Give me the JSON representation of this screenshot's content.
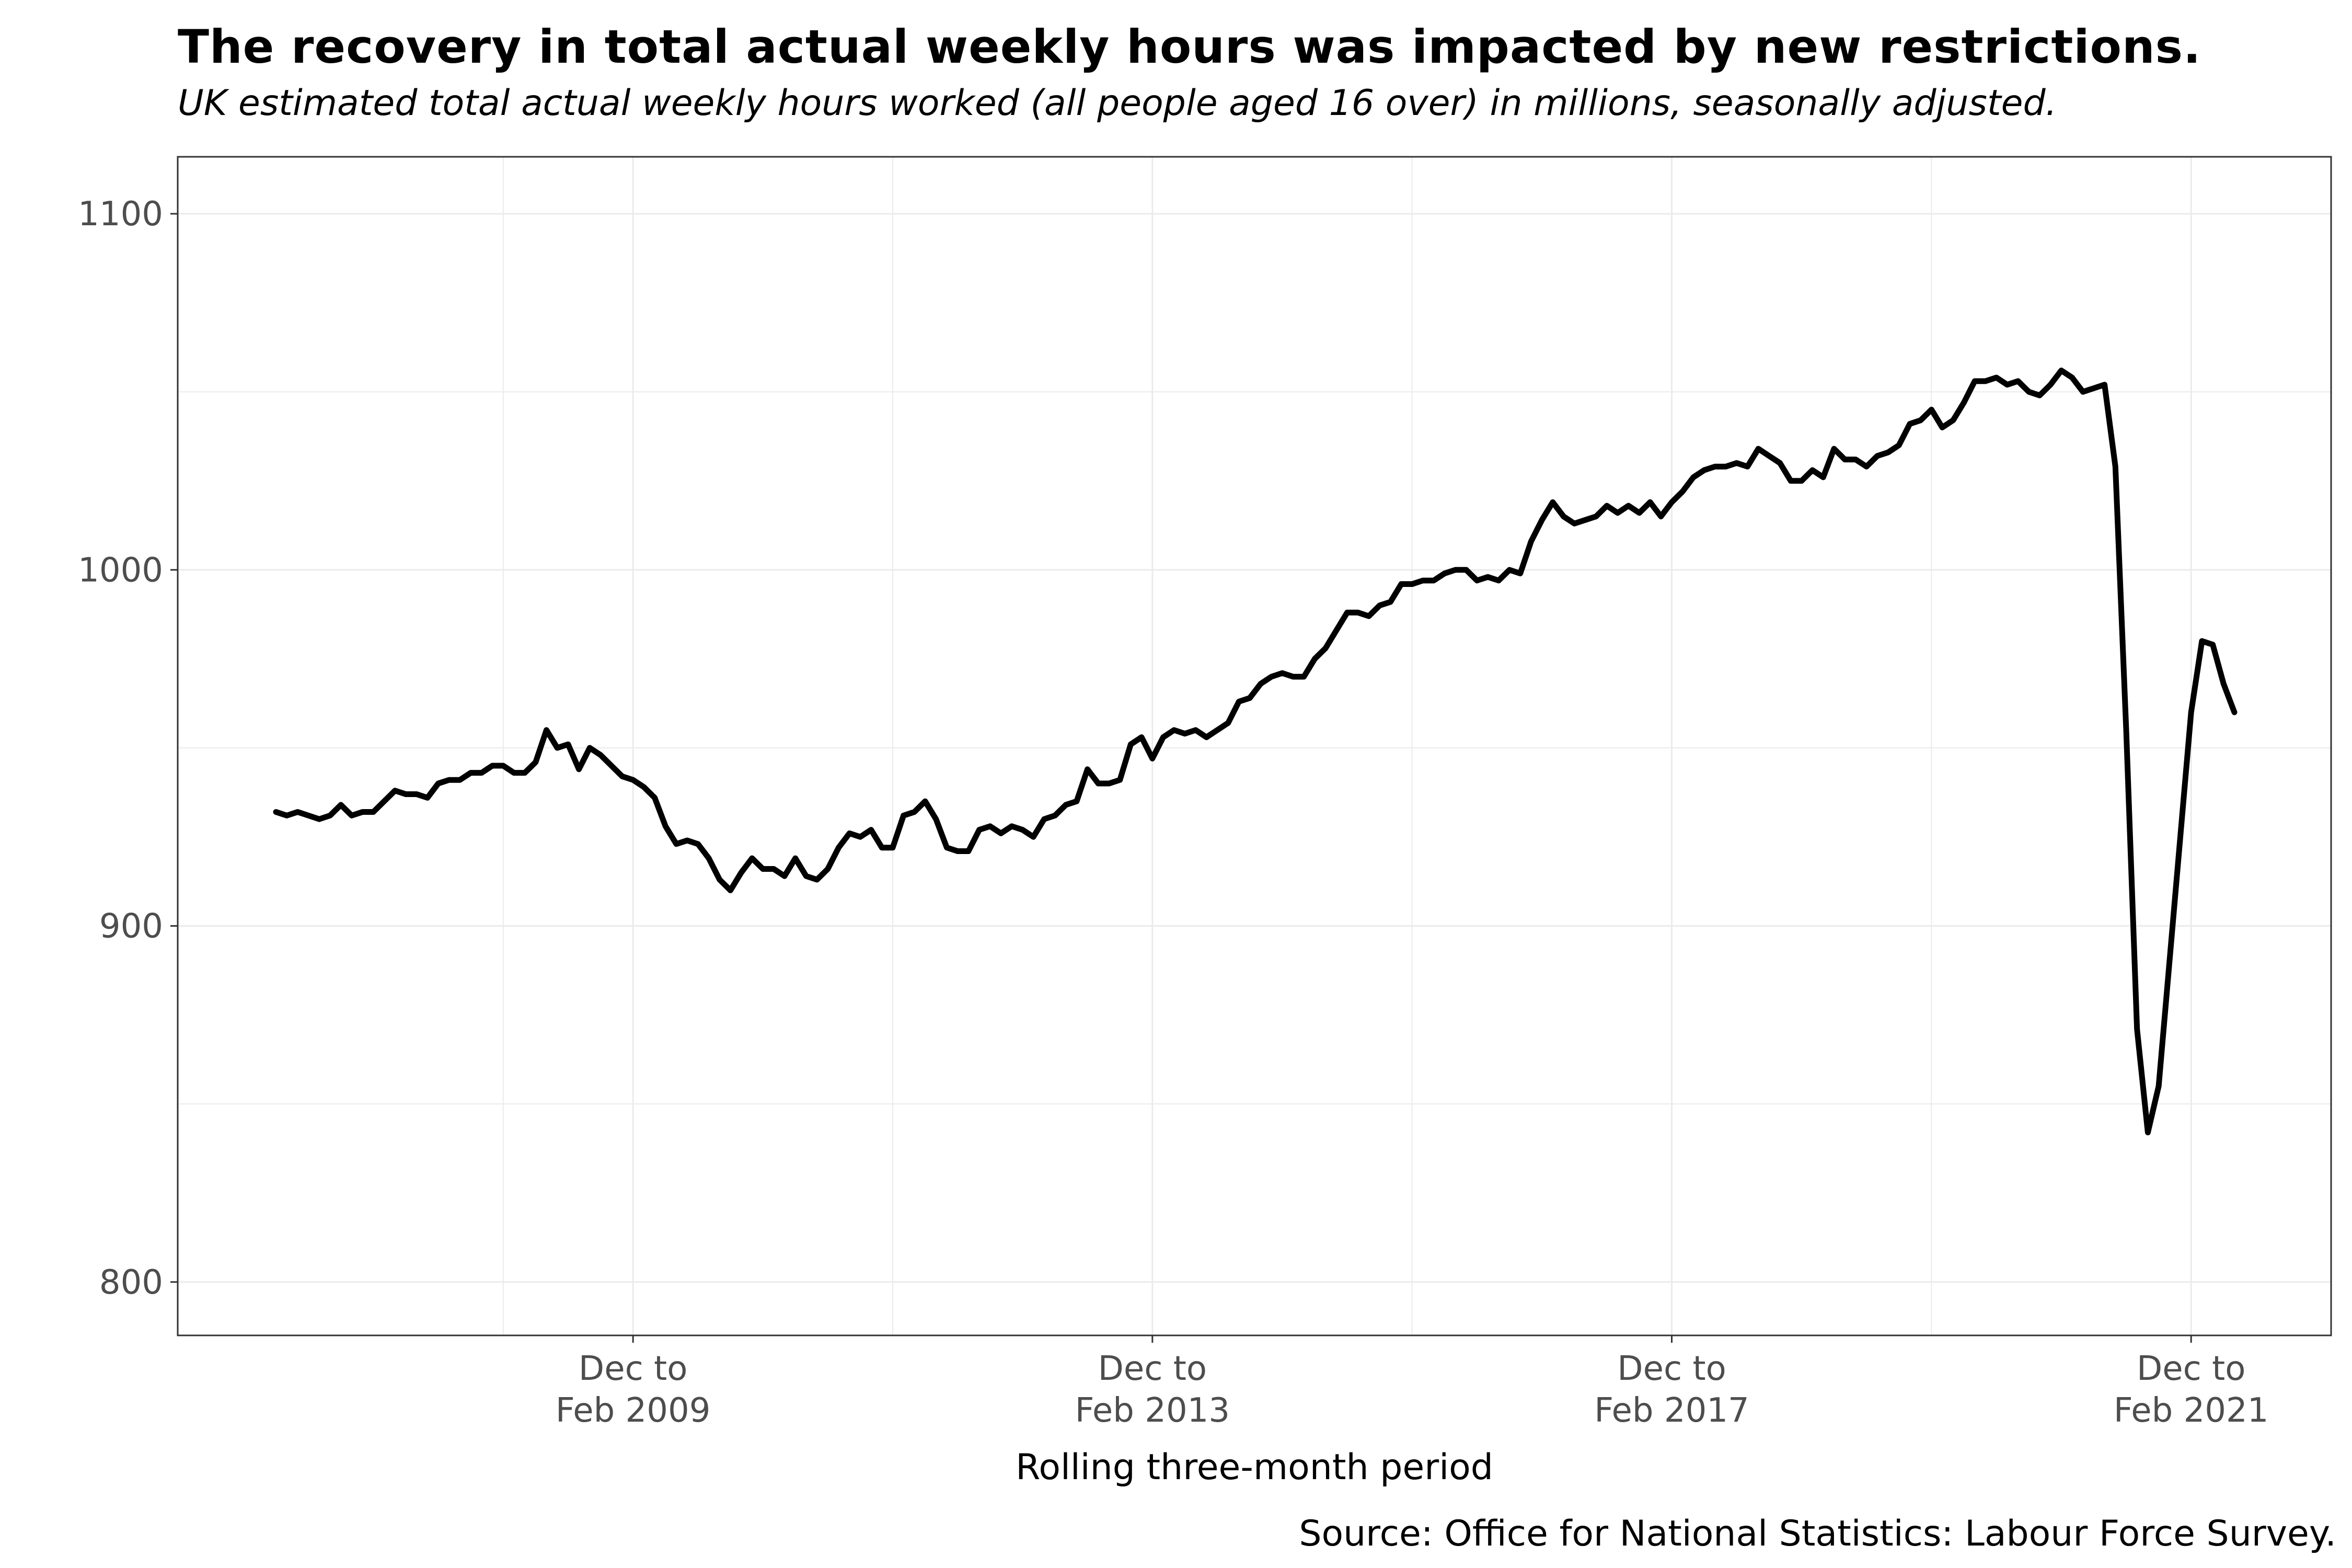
{
  "title": "The recovery in total actual weekly hours was impacted by new restrictions.",
  "subtitle": "UK estimated total actual weekly hours worked (all people aged 16 over) in millions, seasonally adjusted.",
  "source": "Source: Office for National Statistics: Labour Force Survey.",
  "colors": {
    "line": "#000000",
    "grid": "#ebebeb",
    "panel_border": "#333333",
    "tick_text": "#4d4d4d"
  },
  "chart_data": {
    "type": "line",
    "title": "The recovery in total actual weekly hours was impacted by new restrictions.",
    "subtitle": "UK estimated total actual weekly hours worked (all people aged 16 over) in millions, seasonally adjusted.",
    "xlabel": "Rolling three-month period",
    "ylabel": "",
    "ylim": [
      785,
      1116
    ],
    "y_ticks": [
      800,
      900,
      1000,
      1100
    ],
    "y_tick_labels": [
      "800",
      "900",
      "1000",
      "1100"
    ],
    "x_start": "Mar to May 2006",
    "x_end": "Dec to Feb 2021",
    "x_ticks": [
      {
        "period": "Dec to Feb 2009",
        "line1": "Dec to",
        "line2": "Feb 2009"
      },
      {
        "period": "Dec to Feb 2013",
        "line1": "Dec to",
        "line2": "Feb 2013"
      },
      {
        "period": "Dec to Feb 2017",
        "line1": "Dec to",
        "line2": "Feb 2017"
      },
      {
        "period": "Dec to Feb 2021",
        "line1": "Dec to",
        "line2": "Feb 2021"
      }
    ],
    "grid": true,
    "legend": "none",
    "series": [
      {
        "values": [
          932,
          931,
          932,
          931,
          930,
          931,
          934,
          931,
          932,
          932,
          935,
          938,
          937,
          937,
          936,
          940,
          941,
          941,
          943,
          943,
          945,
          945,
          943,
          943,
          946,
          955,
          950,
          951,
          944,
          950,
          948,
          945,
          942,
          941,
          939,
          936,
          928,
          923,
          924,
          923,
          919,
          913,
          910,
          915,
          919,
          916,
          916,
          914,
          919,
          914,
          913,
          916,
          922,
          926,
          925,
          927,
          922,
          922,
          931,
          932,
          935,
          930,
          922,
          921,
          921,
          927,
          928,
          926,
          928,
          927,
          925,
          930,
          931,
          934,
          935,
          944,
          940,
          940,
          941,
          951,
          953,
          947,
          953,
          955,
          954,
          955,
          953,
          955,
          957,
          963,
          964,
          968,
          970,
          971,
          970,
          970,
          975,
          978,
          983,
          988,
          988,
          987,
          990,
          991,
          996,
          996,
          997,
          997,
          999,
          1000,
          1000,
          997,
          998,
          997,
          1000,
          999,
          1008,
          1014,
          1019,
          1015,
          1013,
          1014,
          1015,
          1018,
          1016,
          1018,
          1016,
          1019,
          1015,
          1019,
          1022,
          1026,
          1028,
          1029,
          1029,
          1030,
          1029,
          1034,
          1032,
          1030,
          1025,
          1025,
          1028,
          1026,
          1034,
          1031,
          1031,
          1029,
          1032,
          1033,
          1035,
          1041,
          1042,
          1045,
          1040,
          1042,
          1047,
          1053,
          1053,
          1054,
          1052,
          1053,
          1050,
          1049,
          1052,
          1056,
          1054,
          1050,
          1051,
          1052,
          1029,
          955,
          871,
          842,
          855,
          890,
          925,
          960,
          980,
          979,
          968,
          960
        ]
      }
    ]
  }
}
